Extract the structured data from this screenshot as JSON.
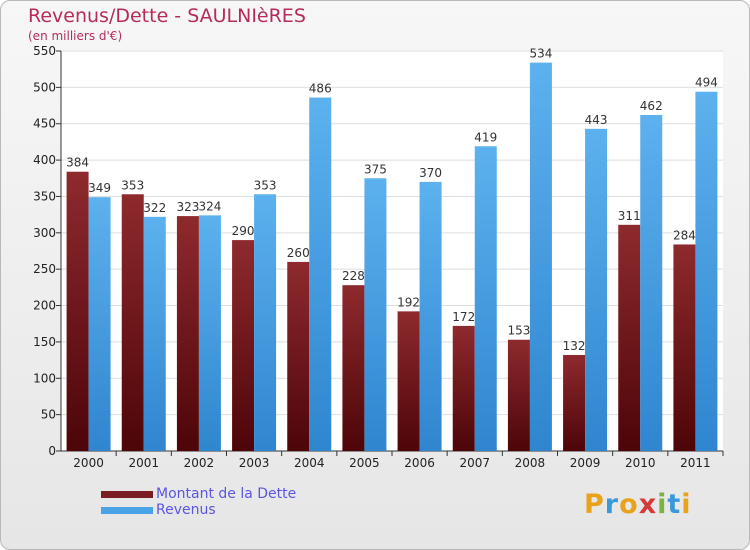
{
  "title": "Revenus/Dette - SAULNIèRES",
  "subtitle": "(en milliers d'€)",
  "logo": {
    "letters": [
      "P",
      "r",
      "o",
      "x",
      "i",
      "t",
      "i"
    ],
    "colors": [
      "#e9a31a",
      "#3a9ad9",
      "#e9a31a",
      "#d63b3b",
      "#7cb342",
      "#3a9ad9",
      "#e9a31a"
    ]
  },
  "chart_data": {
    "type": "bar",
    "title": "Revenus/Dette - SAULNIèRES",
    "ylabel": "(en milliers d'€)",
    "categories": [
      "2000",
      "2001",
      "2002",
      "2003",
      "2004",
      "2005",
      "2006",
      "2007",
      "2008",
      "2009",
      "2010",
      "2011"
    ],
    "series": [
      {
        "name": "Montant de la Dette",
        "color": "#7b1d22",
        "values": [
          384,
          353,
          323,
          290,
          260,
          228,
          192,
          172,
          153,
          132,
          311,
          284
        ]
      },
      {
        "name": "Revenus",
        "color": "#4aa3e6",
        "values": [
          349,
          322,
          324,
          353,
          486,
          375,
          370,
          419,
          534,
          443,
          462,
          494
        ]
      }
    ],
    "ylim": [
      0,
      550
    ],
    "yticks": [
      0,
      50,
      100,
      150,
      200,
      250,
      300,
      350,
      400,
      450,
      500,
      550
    ],
    "grid": true,
    "legend": "bottom-left"
  }
}
